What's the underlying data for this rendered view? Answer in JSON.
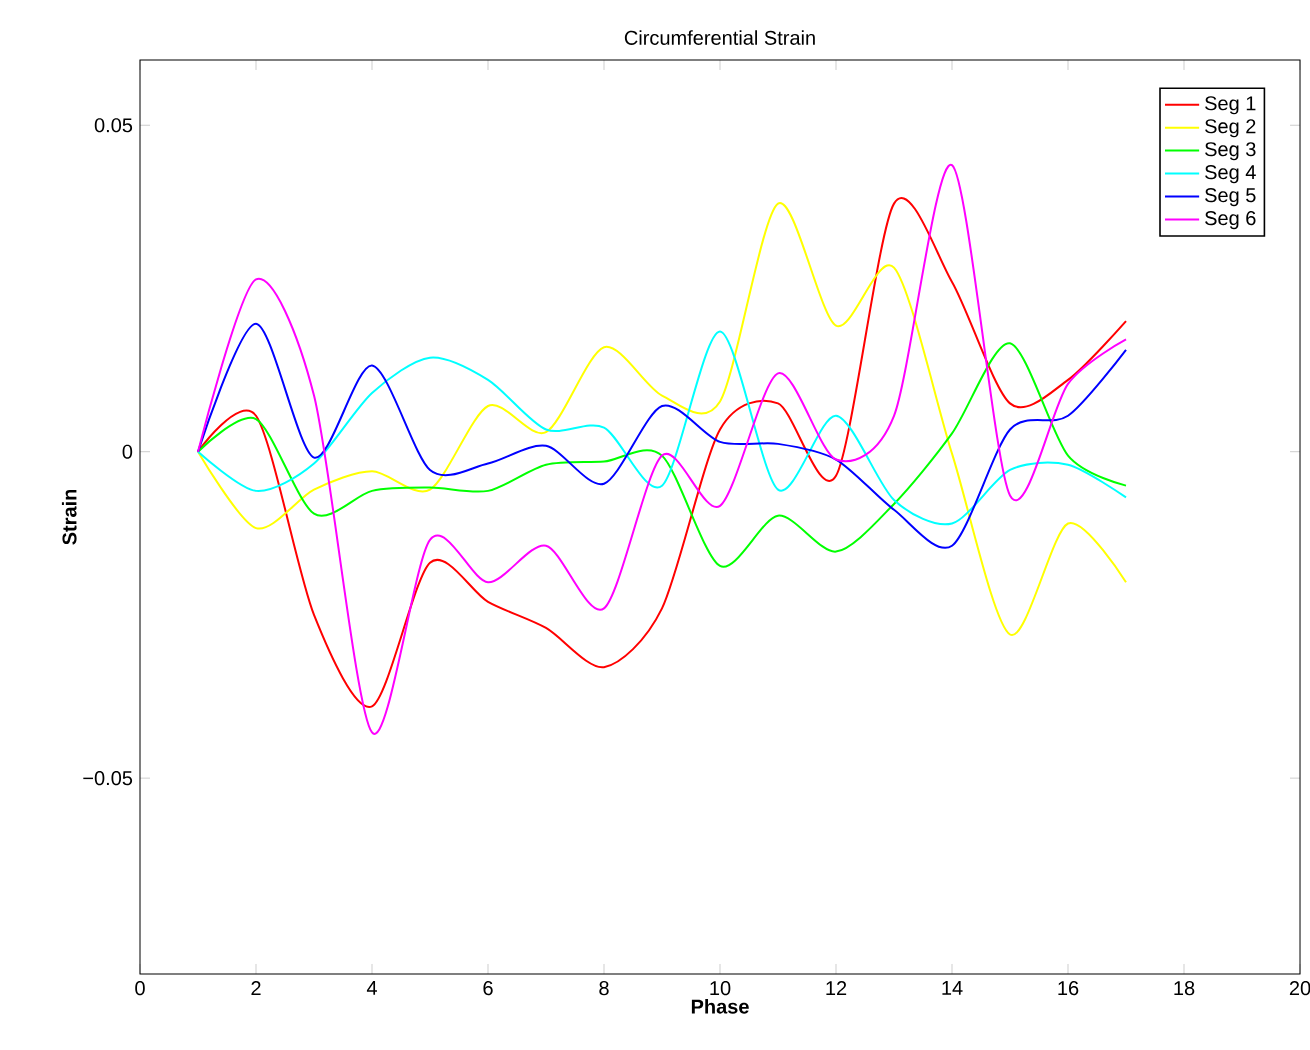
{
  "chart_data": {
    "type": "line",
    "title": "Circumferential Strain",
    "xlabel": "Phase",
    "ylabel": "Strain",
    "x": [
      1,
      2,
      3,
      4,
      5,
      6,
      7,
      8,
      9,
      10,
      11,
      12,
      13,
      14,
      15,
      16,
      17
    ],
    "xlim": [
      0,
      20
    ],
    "xticks": [
      0,
      2,
      4,
      6,
      8,
      10,
      12,
      14,
      16,
      18,
      20
    ],
    "ylim": [
      -0.08,
      0.06
    ],
    "yticks": [
      {
        "value": -0.05,
        "label": "−0.05"
      },
      0,
      0.05
    ],
    "grid": false,
    "legend": "top right",
    "marker": "none",
    "line_style": "solid",
    "series": [
      {
        "name": "Seg 1",
        "color": "#ff0000",
        "values": [
          0,
          0.0055,
          -0.025,
          -0.039,
          -0.017,
          -0.023,
          -0.027,
          -0.033,
          -0.024,
          0.0034,
          0.0074,
          -0.0037,
          0.038,
          0.026,
          0.0074,
          0.011,
          0.02
        ]
      },
      {
        "name": "Seg 2",
        "color": "#ffff00",
        "values": [
          0,
          -0.0117,
          -0.0058,
          -0.003,
          -0.0058,
          0.007,
          0.003,
          0.016,
          0.0086,
          0.0077,
          0.038,
          0.0193,
          0.0282,
          -0.0003,
          -0.028,
          -0.011,
          -0.02
        ]
      },
      {
        "name": "Seg 3",
        "color": "#00ff00",
        "values": [
          0,
          0.005,
          -0.0095,
          -0.006,
          -0.0055,
          -0.006,
          -0.002,
          -0.0015,
          -0.0006,
          -0.0175,
          -0.0098,
          -0.0153,
          -0.008,
          0.0028,
          0.0166,
          -0.0006,
          -0.0052
        ]
      },
      {
        "name": "Seg 4",
        "color": "#00ffff",
        "values": [
          0,
          -0.006,
          -0.0018,
          0.009,
          0.0144,
          0.011,
          0.0034,
          0.0037,
          -0.0052,
          0.0184,
          -0.0058,
          0.0055,
          -0.0074,
          -0.011,
          -0.0028,
          -0.002,
          -0.007
        ]
      },
      {
        "name": "Seg 5",
        "color": "#0000ff",
        "values": [
          0,
          0.0196,
          -0.0009,
          0.0132,
          -0.0028,
          -0.0018,
          0.0009,
          -0.0049,
          0.007,
          0.0015,
          0.0012,
          -0.0012,
          -0.0089,
          -0.0144,
          0.0034,
          0.0055,
          0.0156
        ]
      },
      {
        "name": "Seg 6",
        "color": "#ff00ff",
        "values": [
          0,
          0.0264,
          0.0086,
          -0.043,
          -0.0135,
          -0.02,
          -0.0144,
          -0.024,
          -0.0006,
          -0.0083,
          0.012,
          -0.0012,
          0.0055,
          0.0439,
          -0.0067,
          0.0104,
          0.0172
        ]
      }
    ]
  }
}
